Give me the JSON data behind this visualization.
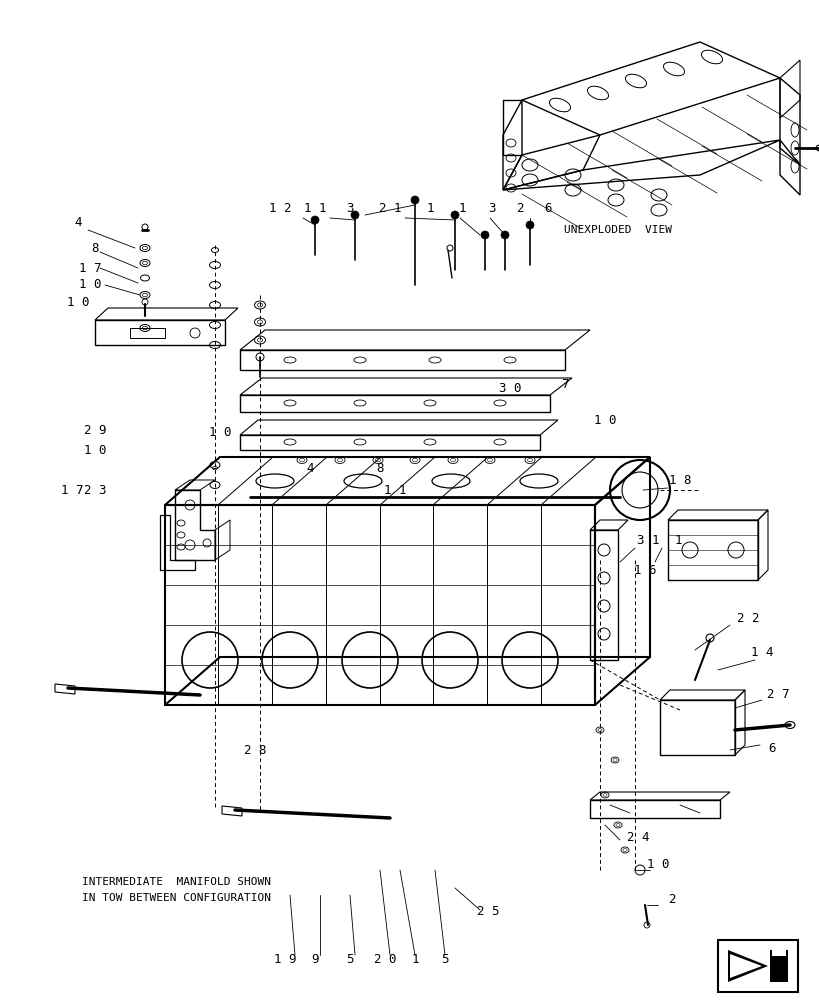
{
  "background_color": "#ffffff",
  "line_color": "#000000",
  "font_family": "monospace",
  "label_fontsize": 9,
  "unexploded_label": "UNEXPLODED  VIEW",
  "bottom_note_line1": "INTERMEDIATE  MANIFOLD SHOWN",
  "bottom_note_line2": "IN TOW BETWEEN CONFIGURATION",
  "fig_width": 8.2,
  "fig_height": 10.0,
  "dpi": 100
}
